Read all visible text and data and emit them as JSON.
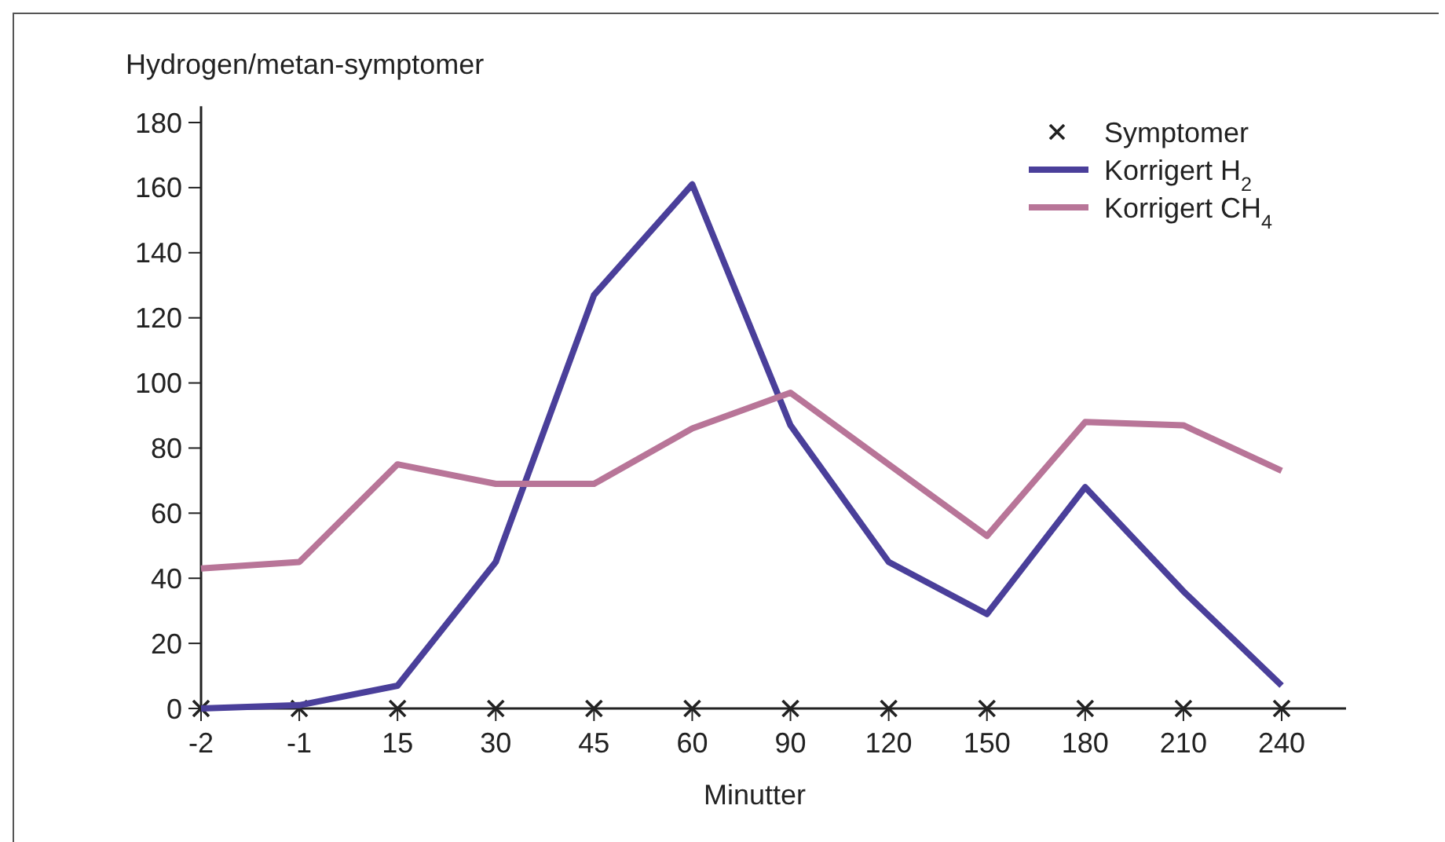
{
  "chart_data": {
    "type": "line",
    "ylabel": "Hydrogen/metan-symptomer",
    "xlabel": "Minutter",
    "categories": [
      "-2",
      "-1",
      "15",
      "30",
      "45",
      "60",
      "90",
      "120",
      "150",
      "180",
      "210",
      "240"
    ],
    "ylim": [
      0,
      185
    ],
    "yticks": [
      0,
      20,
      40,
      60,
      80,
      100,
      120,
      140,
      160,
      180
    ],
    "grid": false,
    "legend": "top right",
    "series": [
      {
        "name": "Symptomer",
        "type": "scatter",
        "marker": "cross",
        "color": "#222222",
        "x": [
          "-2",
          "-1",
          "15",
          "30",
          "45",
          "60",
          "90",
          "120",
          "150",
          "180",
          "210",
          "240"
        ],
        "values": [
          0,
          0,
          0,
          0,
          0,
          0,
          0,
          0,
          0,
          0,
          0,
          0
        ]
      },
      {
        "name": "Korrigert H$_{2}$",
        "color": "#4a3f9a",
        "values": [
          0,
          1,
          7,
          45,
          127,
          161,
          87,
          45,
          29,
          68,
          36,
          7
        ]
      },
      {
        "name": "Korrigert CH$_{4}$",
        "color": "#b87598",
        "values": [
          43,
          45,
          75,
          69,
          69,
          86,
          97,
          75,
          53,
          88,
          87,
          73
        ]
      }
    ]
  }
}
